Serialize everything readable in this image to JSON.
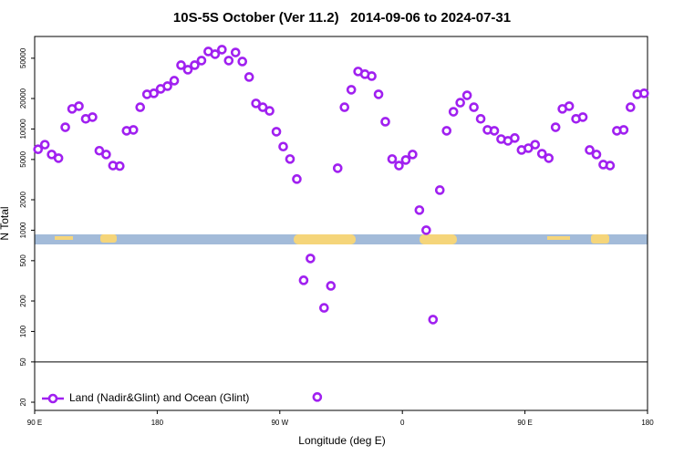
{
  "chart_data": {
    "type": "scatter",
    "title": "10S-5S October (Ver 11.2)   2014-09-06 to 2024-07-31",
    "x_label": "Longitude (deg E)",
    "y_label": "N Total",
    "xlim": [
      90,
      540
    ],
    "xticks": [
      {
        "value": 90,
        "label": "90 E"
      },
      180,
      {
        "value": 270,
        "label": "90 W"
      },
      {
        "value": 360,
        "label": "0"
      },
      {
        "value": 450,
        "label": "90 E"
      },
      {
        "value": 540,
        "label": "180"
      }
    ],
    "ylim": [
      16.6,
      82000
    ],
    "ylog": true,
    "yticks": [
      20,
      50,
      100,
      200,
      500,
      1000,
      2000,
      5000,
      10000,
      20000,
      50000
    ],
    "legend": "bottom-left",
    "series": [
      {
        "name": "Land (Nadir&Glint) and Ocean (Glint)",
        "color": "#a020f0",
        "x": [
          92.5,
          97.5,
          102.5,
          107.5,
          112.5,
          117.5,
          122.5,
          127.5,
          132.5,
          137.5,
          142.5,
          147.5,
          152.5,
          157.5,
          162.5,
          167.5,
          172.5,
          177.5,
          182.5,
          187.5,
          192.5,
          197.5,
          202.5,
          207.5,
          212.5,
          217.5,
          222.5,
          227.5,
          232.5,
          237.5,
          242.5,
          247.5,
          252.5,
          257.5,
          262.5,
          267.5,
          272.5,
          277.5,
          282.5,
          287.5,
          292.5,
          297.5,
          302.5,
          307.5,
          312.5,
          317.5,
          322.5,
          327.5,
          332.5,
          337.5,
          342.5,
          347.5,
          352.5,
          357.5,
          362.5,
          367.5,
          372.5,
          377.5,
          382.5,
          387.5,
          392.5,
          397.5,
          402.5,
          407.5,
          412.5,
          417.5,
          422.5,
          427.5,
          432.5,
          437.5,
          442.5,
          447.5,
          452.5,
          457.5,
          462.5,
          467.5,
          472.5,
          477.5,
          482.5,
          487.5,
          492.5,
          497.5,
          502.5,
          507.5,
          512.5,
          517.5,
          522.5,
          527.5,
          532.5,
          537.5
        ],
        "values": [
          6300,
          7000,
          5600,
          5150,
          10400,
          15800,
          16800,
          12600,
          13100,
          6100,
          5600,
          4350,
          4300,
          9600,
          9800,
          16400,
          22000,
          22500,
          24900,
          26500,
          30000,
          42700,
          38500,
          42700,
          47400,
          58300,
          54800,
          60800,
          47400,
          57000,
          46400,
          32600,
          17900,
          16400,
          15100,
          9400,
          6700,
          5050,
          3200,
          320,
          526,
          22.5,
          171,
          282,
          4100,
          16400,
          24400,
          37000,
          34800,
          33300,
          22000,
          11800,
          5050,
          4350,
          4940,
          5600,
          1580,
          1000,
          131,
          2490,
          9600,
          14800,
          18200,
          21500,
          16400,
          12600,
          9800,
          9600,
          7950,
          7640,
          8140,
          6200,
          6460,
          7000,
          5700,
          5150,
          10400,
          15800,
          16800,
          12600,
          13100,
          6200,
          5600,
          4450,
          4350,
          9600,
          9800,
          16400,
          22000,
          22500
        ]
      }
    ]
  }
}
